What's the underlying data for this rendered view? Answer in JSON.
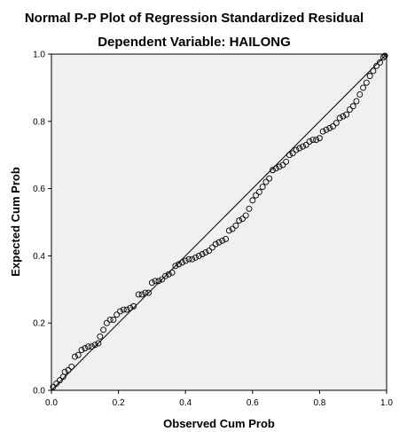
{
  "chart_data": {
    "type": "scatter",
    "title": "Normal P-P Plot of Regression Standardized Residual",
    "subtitle": "Dependent Variable: HAILONG",
    "xlabel": "Observed Cum Prob",
    "ylabel": "Expected Cum Prob",
    "xlim": [
      0,
      1
    ],
    "ylim": [
      0,
      1
    ],
    "xticks": [
      "0.0",
      "0.2",
      "0.4",
      "0.6",
      "0.8",
      "1.0"
    ],
    "yticks": [
      "0.0",
      "0.2",
      "0.4",
      "0.6",
      "0.8",
      "1.0"
    ],
    "reference_line": [
      [
        0,
        0
      ],
      [
        1,
        1
      ]
    ],
    "grid": false,
    "plot_background": "#f0f0f0",
    "marker_color": "#000000",
    "marker": "open-circle",
    "points": [
      [
        0.005,
        0.01
      ],
      [
        0.015,
        0.02
      ],
      [
        0.025,
        0.03
      ],
      [
        0.035,
        0.04
      ],
      [
        0.04,
        0.055
      ],
      [
        0.05,
        0.06
      ],
      [
        0.06,
        0.07
      ],
      [
        0.07,
        0.1
      ],
      [
        0.08,
        0.105
      ],
      [
        0.09,
        0.12
      ],
      [
        0.1,
        0.125
      ],
      [
        0.11,
        0.13
      ],
      [
        0.12,
        0.13
      ],
      [
        0.13,
        0.135
      ],
      [
        0.14,
        0.14
      ],
      [
        0.145,
        0.16
      ],
      [
        0.155,
        0.18
      ],
      [
        0.165,
        0.2
      ],
      [
        0.175,
        0.21
      ],
      [
        0.185,
        0.21
      ],
      [
        0.195,
        0.225
      ],
      [
        0.205,
        0.235
      ],
      [
        0.215,
        0.24
      ],
      [
        0.225,
        0.24
      ],
      [
        0.235,
        0.245
      ],
      [
        0.245,
        0.25
      ],
      [
        0.26,
        0.285
      ],
      [
        0.27,
        0.285
      ],
      [
        0.28,
        0.29
      ],
      [
        0.29,
        0.29
      ],
      [
        0.3,
        0.32
      ],
      [
        0.31,
        0.325
      ],
      [
        0.32,
        0.325
      ],
      [
        0.33,
        0.33
      ],
      [
        0.34,
        0.34
      ],
      [
        0.35,
        0.345
      ],
      [
        0.36,
        0.35
      ],
      [
        0.37,
        0.37
      ],
      [
        0.38,
        0.375
      ],
      [
        0.39,
        0.38
      ],
      [
        0.4,
        0.385
      ],
      [
        0.41,
        0.39
      ],
      [
        0.42,
        0.39
      ],
      [
        0.43,
        0.395
      ],
      [
        0.44,
        0.4
      ],
      [
        0.45,
        0.405
      ],
      [
        0.46,
        0.41
      ],
      [
        0.47,
        0.415
      ],
      [
        0.48,
        0.425
      ],
      [
        0.49,
        0.435
      ],
      [
        0.5,
        0.44
      ],
      [
        0.51,
        0.445
      ],
      [
        0.52,
        0.45
      ],
      [
        0.53,
        0.475
      ],
      [
        0.54,
        0.48
      ],
      [
        0.55,
        0.49
      ],
      [
        0.56,
        0.505
      ],
      [
        0.57,
        0.51
      ],
      [
        0.58,
        0.52
      ],
      [
        0.59,
        0.54
      ],
      [
        0.6,
        0.565
      ],
      [
        0.61,
        0.58
      ],
      [
        0.62,
        0.59
      ],
      [
        0.63,
        0.605
      ],
      [
        0.64,
        0.62
      ],
      [
        0.65,
        0.63
      ],
      [
        0.66,
        0.655
      ],
      [
        0.67,
        0.66
      ],
      [
        0.68,
        0.665
      ],
      [
        0.69,
        0.67
      ],
      [
        0.7,
        0.68
      ],
      [
        0.71,
        0.7
      ],
      [
        0.72,
        0.705
      ],
      [
        0.73,
        0.715
      ],
      [
        0.74,
        0.72
      ],
      [
        0.75,
        0.725
      ],
      [
        0.76,
        0.73
      ],
      [
        0.77,
        0.74
      ],
      [
        0.78,
        0.745
      ],
      [
        0.79,
        0.745
      ],
      [
        0.8,
        0.75
      ],
      [
        0.81,
        0.77
      ],
      [
        0.82,
        0.775
      ],
      [
        0.83,
        0.78
      ],
      [
        0.84,
        0.785
      ],
      [
        0.85,
        0.795
      ],
      [
        0.86,
        0.81
      ],
      [
        0.87,
        0.815
      ],
      [
        0.88,
        0.82
      ],
      [
        0.89,
        0.835
      ],
      [
        0.9,
        0.845
      ],
      [
        0.91,
        0.86
      ],
      [
        0.92,
        0.88
      ],
      [
        0.93,
        0.9
      ],
      [
        0.94,
        0.915
      ],
      [
        0.95,
        0.935
      ],
      [
        0.96,
        0.95
      ],
      [
        0.97,
        0.965
      ],
      [
        0.98,
        0.975
      ],
      [
        0.99,
        0.99
      ],
      [
        0.995,
        0.995
      ]
    ]
  }
}
